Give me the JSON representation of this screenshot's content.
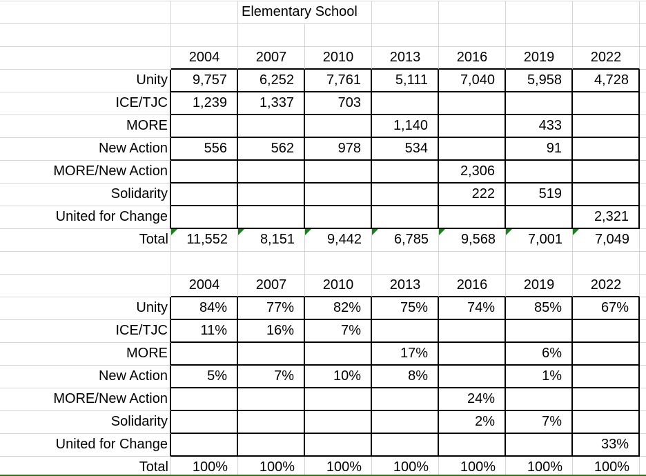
{
  "sheet": {
    "title": "Elementary School"
  },
  "years": [
    "2004",
    "2007",
    "2010",
    "2013",
    "2016",
    "2019",
    "2022"
  ],
  "counts": {
    "rows": [
      {
        "label": "Unity",
        "values": [
          "9,757",
          "6,252",
          "7,761",
          "5,111",
          "7,040",
          "5,958",
          "4,728"
        ]
      },
      {
        "label": "ICE/TJC",
        "values": [
          "1,239",
          "1,337",
          "703",
          "",
          "",
          "",
          ""
        ]
      },
      {
        "label": "MORE",
        "values": [
          "",
          "",
          "",
          "1,140",
          "",
          "433",
          ""
        ]
      },
      {
        "label": "New Action",
        "values": [
          "556",
          "562",
          "978",
          "534",
          "",
          "91",
          ""
        ]
      },
      {
        "label": "MORE/New Action",
        "values": [
          "",
          "",
          "",
          "",
          "2,306",
          "",
          ""
        ]
      },
      {
        "label": "Solidarity",
        "values": [
          "",
          "",
          "",
          "",
          "222",
          "519",
          ""
        ]
      },
      {
        "label": "United for Change",
        "values": [
          "",
          "",
          "",
          "",
          "",
          "",
          "2,321"
        ]
      }
    ],
    "total": {
      "label": "Total",
      "values": [
        "11,552",
        "8,151",
        "9,442",
        "6,785",
        "9,568",
        "7,001",
        "7,049"
      ],
      "has_error_indicators": true
    }
  },
  "percents": {
    "rows": [
      {
        "label": "Unity",
        "values": [
          "84%",
          "77%",
          "82%",
          "75%",
          "74%",
          "85%",
          "67%"
        ]
      },
      {
        "label": "ICE/TJC",
        "values": [
          "11%",
          "16%",
          "7%",
          "",
          "",
          "",
          ""
        ]
      },
      {
        "label": "MORE",
        "values": [
          "",
          "",
          "",
          "17%",
          "",
          "6%",
          ""
        ]
      },
      {
        "label": "New Action",
        "values": [
          "5%",
          "7%",
          "10%",
          "8%",
          "",
          "1%",
          ""
        ]
      },
      {
        "label": "MORE/New Action",
        "values": [
          "",
          "",
          "",
          "",
          "24%",
          "",
          ""
        ]
      },
      {
        "label": "Solidarity",
        "values": [
          "",
          "",
          "",
          "",
          "2%",
          "7%",
          ""
        ]
      },
      {
        "label": "United for Change",
        "values": [
          "",
          "",
          "",
          "",
          "",
          "",
          "33%"
        ]
      }
    ],
    "total": {
      "label": "Total",
      "values": [
        "100%",
        "100%",
        "100%",
        "100%",
        "100%",
        "100%",
        "100%"
      ],
      "has_error_indicators": false
    }
  },
  "colors": {
    "gridline": "#d4d4d4",
    "table_border": "#000000",
    "error_indicator_green": "#217d21",
    "bottom_edge_green": "#376b1e",
    "text": "#000000",
    "background": "#ffffff"
  }
}
